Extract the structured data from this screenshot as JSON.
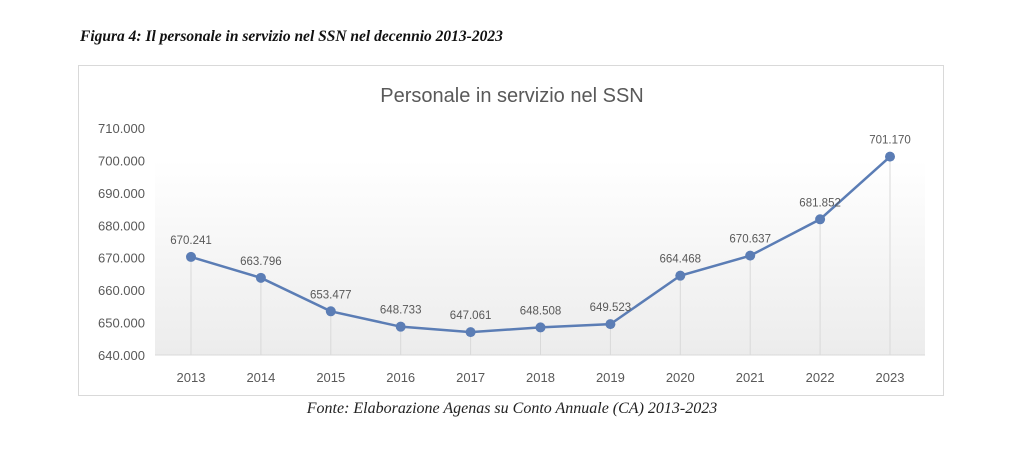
{
  "figure_title": "Figura 4: Il personale in servizio nel SSN nel decennio 2013-2023",
  "source": "Fonte: Elaborazione Agenas su Conto Annuale (CA) 2013-2023",
  "colors": {
    "line": "#5b7db5",
    "marker": "#5b7db5",
    "text": "#595959",
    "grid": "#d9d9d9"
  },
  "chart_data": {
    "type": "line",
    "title": "Personale in servizio nel SSN",
    "xlabel": "",
    "ylabel": "",
    "categories": [
      "2013",
      "2014",
      "2015",
      "2016",
      "2017",
      "2018",
      "2019",
      "2020",
      "2021",
      "2022",
      "2023"
    ],
    "values": [
      670241,
      663796,
      653477,
      648733,
      647061,
      648508,
      649523,
      664468,
      670637,
      681852,
      701170
    ],
    "data_labels": [
      "670.241",
      "663.796",
      "653.477",
      "648.733",
      "647.061",
      "648.508",
      "649.523",
      "664.468",
      "670.637",
      "681.852",
      "701.170"
    ],
    "ylim": [
      640000,
      710000
    ],
    "yticks": [
      640000,
      650000,
      660000,
      670000,
      680000,
      690000,
      700000,
      710000
    ],
    "ytick_labels": [
      "640.000",
      "650.000",
      "660.000",
      "670.000",
      "680.000",
      "690.000",
      "700.000",
      "710.000"
    ],
    "grid": false,
    "drop_lines": true,
    "legend": "none"
  }
}
